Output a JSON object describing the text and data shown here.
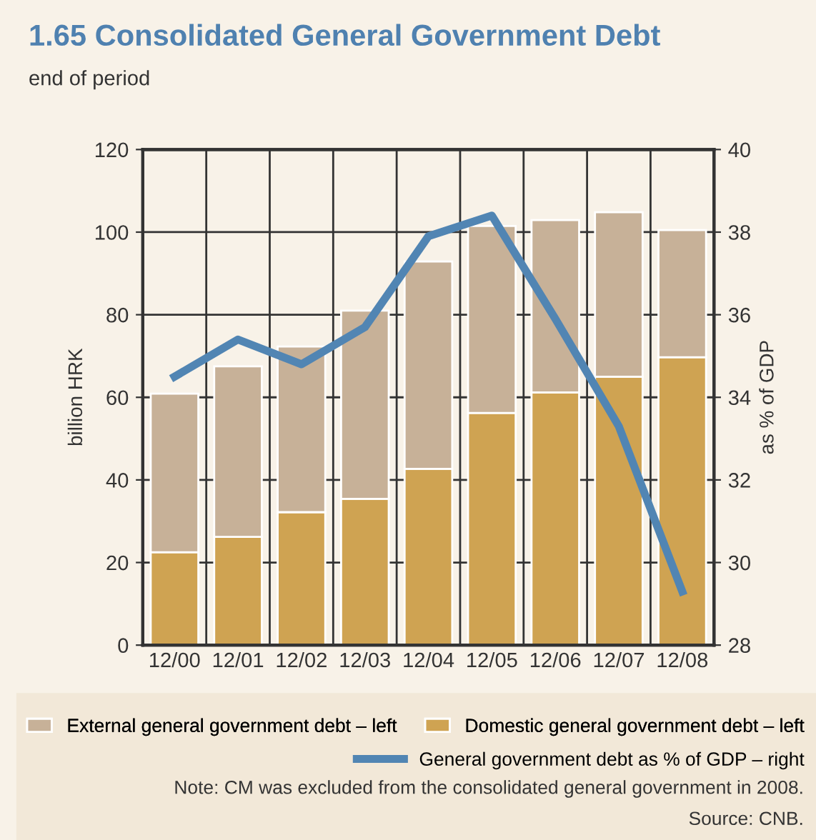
{
  "chart_data": {
    "type": "bar",
    "stacked": true,
    "title": "1.65 Consolidated General Government Debt",
    "subtitle": "end of period",
    "ylabel": "billion HRK",
    "y2label": "as % of GDP",
    "categories": [
      "12/00",
      "12/01",
      "12/02",
      "12/03",
      "12/04",
      "12/05",
      "12/06",
      "12/07",
      "12/08"
    ],
    "series": [
      {
        "name": "Domestic general government debt – left",
        "color": "#cfa352",
        "values": [
          22.5,
          26.2,
          32.2,
          35.4,
          42.7,
          56.2,
          61.2,
          65.0,
          69.7
        ]
      },
      {
        "name": "External general government debt – left",
        "color": "#c7b198",
        "values": [
          38.4,
          41.3,
          40.1,
          45.6,
          50.2,
          45.3,
          41.7,
          39.8,
          30.8
        ]
      },
      {
        "name": "General government debt as % of GDP – right",
        "color": "#5185b3",
        "type": "line",
        "axis": "y2",
        "values": [
          34.5,
          35.4,
          34.8,
          35.7,
          37.9,
          38.4,
          35.9,
          33.3,
          29.3
        ]
      }
    ],
    "ylim": [
      0,
      120
    ],
    "yticks": [
      0,
      20,
      40,
      60,
      80,
      100,
      120
    ],
    "y2lim": [
      28,
      40
    ],
    "y2ticks": [
      28,
      30,
      32,
      34,
      36,
      38,
      40
    ],
    "grid": true,
    "legend": "bottom",
    "marker": "none",
    "line_style": "solid",
    "annotations": [
      "Note: CM was excluded from the consolidated general government in 2008.",
      "Source: CNB."
    ]
  }
}
